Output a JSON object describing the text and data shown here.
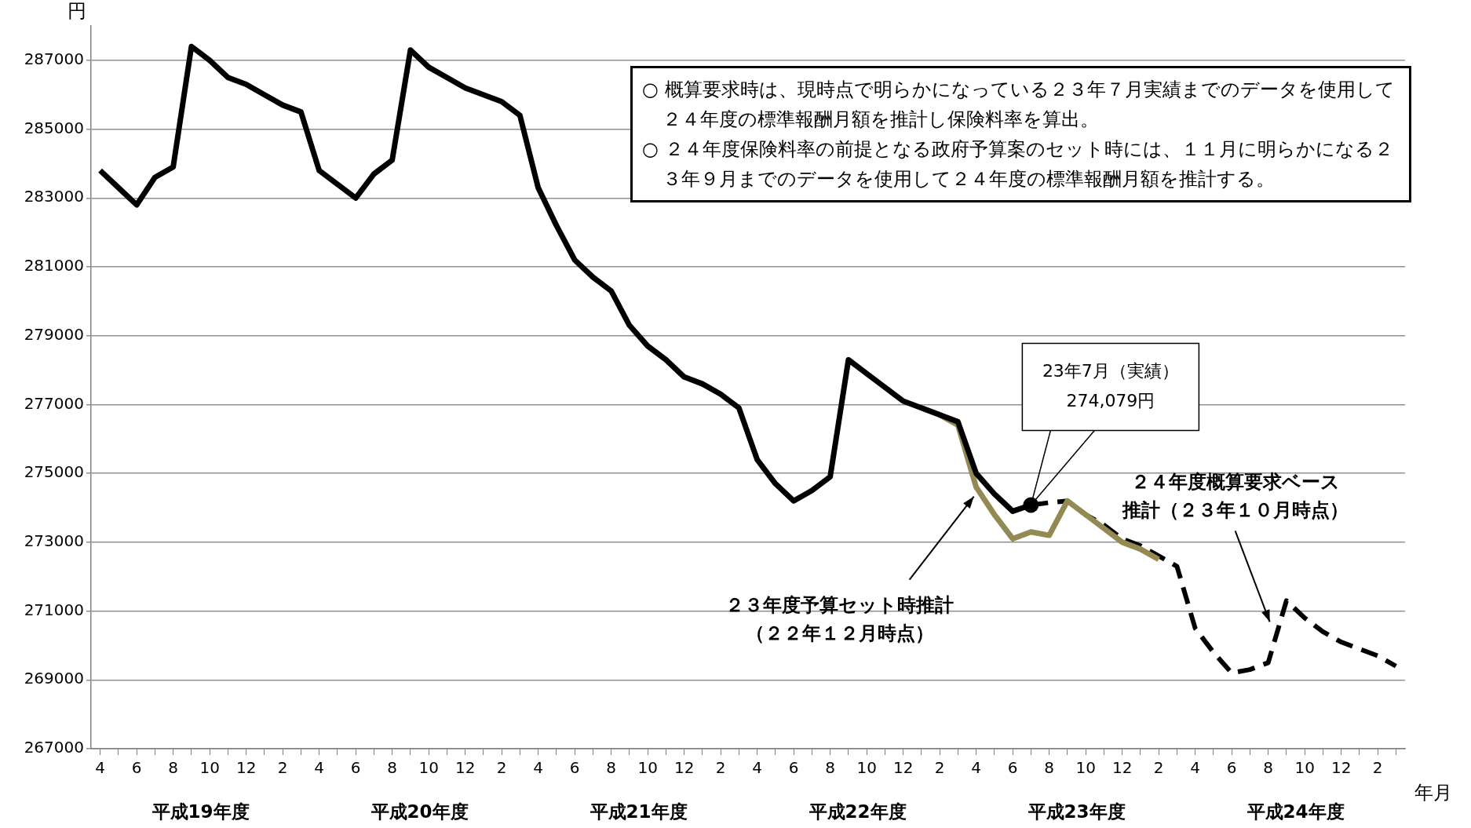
{
  "chart_data": {
    "type": "line",
    "ylabel": "円",
    "xlabel": "年月",
    "categories": [
      "4",
      null,
      "6",
      null,
      "8",
      null,
      "10",
      null,
      "12",
      null,
      "2",
      null,
      "4",
      null,
      "6",
      null,
      "8",
      null,
      "10",
      null,
      "12",
      null,
      "2",
      null,
      "4",
      null,
      "6",
      null,
      "8",
      null,
      "10",
      null,
      "12",
      null,
      "2",
      null,
      "4",
      null,
      "6",
      null,
      "8",
      null,
      "10",
      null,
      "12",
      null,
      "2",
      null,
      "4",
      null,
      "6",
      null,
      "8",
      null,
      "10",
      null,
      "12",
      null,
      "2",
      null,
      "4",
      null,
      "6",
      null,
      "8",
      null,
      "10",
      null,
      "12",
      null,
      "2",
      null
    ],
    "ylim": [
      267000,
      288000
    ],
    "yticks": [
      267000,
      269000,
      271000,
      273000,
      275000,
      277000,
      279000,
      281000,
      283000,
      285000,
      287000
    ],
    "grid": "y",
    "marker": "none",
    "series": [
      {
        "color": "#000000",
        "line_style": "solid",
        "values": [
          283800,
          283300,
          282800,
          283600,
          283900,
          287400,
          287000,
          286500,
          286300,
          286000,
          285700,
          285500,
          283800,
          283400,
          283000,
          283700,
          284100,
          287300,
          286800,
          286500,
          286200,
          286000,
          285800,
          285400,
          283300,
          282200,
          281200,
          280700,
          280300,
          279300,
          278700,
          278300,
          277800,
          277600,
          277300,
          276900,
          275400,
          274700,
          274200,
          274500,
          274900,
          278300,
          277900,
          277500,
          277100,
          276900,
          276700,
          276500,
          275000,
          274400,
          273900,
          274079,
          null,
          null,
          null,
          null,
          null,
          null,
          null,
          null,
          null,
          null,
          null,
          null,
          null,
          null,
          null,
          null,
          null,
          null,
          null,
          null
        ]
      },
      {
        "name": "２３年度予算セット時推計（２２年１２月時点）",
        "color": "#938953",
        "line_style": "solid",
        "values": [
          null,
          null,
          null,
          null,
          null,
          null,
          null,
          null,
          null,
          null,
          null,
          null,
          null,
          null,
          null,
          null,
          null,
          null,
          null,
          null,
          null,
          null,
          null,
          null,
          null,
          null,
          null,
          null,
          null,
          null,
          null,
          null,
          null,
          null,
          null,
          null,
          null,
          null,
          null,
          null,
          null,
          null,
          null,
          null,
          null,
          276900,
          276700,
          276400,
          274600,
          273800,
          273100,
          273300,
          273200,
          274200,
          273800,
          273400,
          273000,
          272800,
          272500,
          null,
          null,
          null,
          null,
          null,
          null,
          null,
          null,
          null,
          null,
          null,
          null,
          null
        ]
      },
      {
        "name": "２４年度概算要求ベース推計（２３年１０月時点）",
        "color": "#000000",
        "line_style": "dashed",
        "values": [
          null,
          null,
          null,
          null,
          null,
          null,
          null,
          null,
          null,
          null,
          null,
          null,
          null,
          null,
          null,
          null,
          null,
          null,
          null,
          null,
          null,
          null,
          null,
          null,
          null,
          null,
          null,
          null,
          null,
          null,
          null,
          null,
          null,
          null,
          null,
          null,
          null,
          null,
          null,
          null,
          null,
          null,
          null,
          null,
          null,
          null,
          null,
          null,
          null,
          null,
          null,
          274079,
          274150,
          274200,
          273800,
          273500,
          273100,
          272900,
          272600,
          272300,
          270500,
          269800,
          269200,
          269300,
          269500,
          271300,
          270800,
          270400,
          270100,
          269900,
          269700,
          269400
        ]
      }
    ],
    "annotations": [
      "○ 概算要求時は、現時点で明らかになっている２３年７月実績までのデータを使用して２４年度の標準報酬月額を推計し保険料率を算出。\n○ ２４年度保険料率の前提となる政府予算案のセット時には、１１月に明らかになる２３年９月までのデータを使用して２４年度の標準報酬月額を推計する。",
      "23年7月（実績）\n274,079円",
      "平成19年度",
      "平成20年度",
      "平成21年度",
      "平成22年度",
      "平成23年度",
      "平成24年度"
    ]
  }
}
